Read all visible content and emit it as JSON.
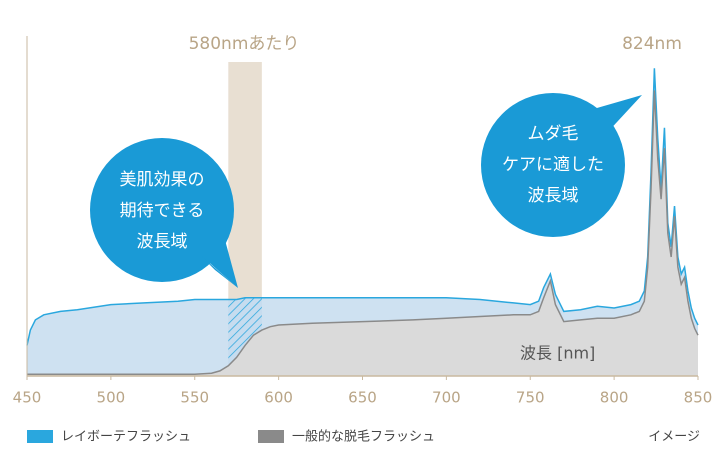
{
  "chart_data": {
    "type": "area-line",
    "annotations": {
      "band_label": "580nmあたり",
      "peak_label": "824nm",
      "left_bubble": [
        "美肌効果の",
        "期待できる",
        "波長域"
      ],
      "right_bubble": [
        "ムダ毛",
        "ケアに適した",
        "波長域"
      ],
      "x_label": "波長 [nm]",
      "note": "イメージ"
    },
    "highlight_band": [
      570,
      590
    ],
    "x": [
      450,
      452,
      455,
      460,
      470,
      480,
      500,
      520,
      540,
      550,
      560,
      565,
      570,
      575,
      580,
      585,
      590,
      595,
      600,
      620,
      650,
      680,
      700,
      720,
      740,
      750,
      755,
      758,
      762,
      765,
      770,
      780,
      790,
      800,
      810,
      815,
      818,
      820,
      822,
      824,
      826,
      828,
      830,
      832,
      834,
      836,
      838,
      840,
      842,
      844,
      846,
      848,
      850
    ],
    "series": [
      {
        "name": "レイボーテフラッシュ",
        "color": "#2aa7de",
        "fill": "#c6dcef",
        "values": [
          9,
          13.5,
          16.5,
          18,
          19,
          19.5,
          21,
          21.5,
          22,
          22.5,
          22.5,
          22.5,
          22.5,
          22.5,
          23,
          23,
          23,
          23,
          23,
          23,
          23,
          23,
          23,
          22.5,
          21.5,
          21,
          22,
          26,
          30,
          24,
          19,
          19.5,
          20.5,
          20,
          21,
          22,
          25,
          35,
          60,
          90.5,
          70,
          55,
          73,
          45,
          38,
          50,
          35,
          30,
          32,
          25,
          20,
          17,
          15
        ]
      },
      {
        "name": "一般的な脱毛フラッシュ",
        "color": "#8a8a8a",
        "fill": "#dadada",
        "values": [
          0.5,
          0.5,
          0.5,
          0.5,
          0.5,
          0.5,
          0.5,
          0.5,
          0.5,
          0.5,
          0.8,
          1.5,
          3,
          5.5,
          9,
          12,
          13.5,
          14.5,
          15,
          15.5,
          16,
          16.5,
          17,
          17.5,
          18,
          18,
          19,
          23,
          28,
          21,
          16,
          16.5,
          17,
          17,
          18,
          19,
          22,
          32,
          55,
          84,
          64,
          52,
          67,
          42,
          35,
          47,
          32,
          27,
          29,
          22,
          17,
          14,
          12
        ]
      }
    ],
    "xlim": [
      450,
      850
    ],
    "xticks": [
      450,
      500,
      550,
      600,
      650,
      700,
      750,
      800,
      850
    ],
    "ylim": [
      0,
      100
    ]
  }
}
